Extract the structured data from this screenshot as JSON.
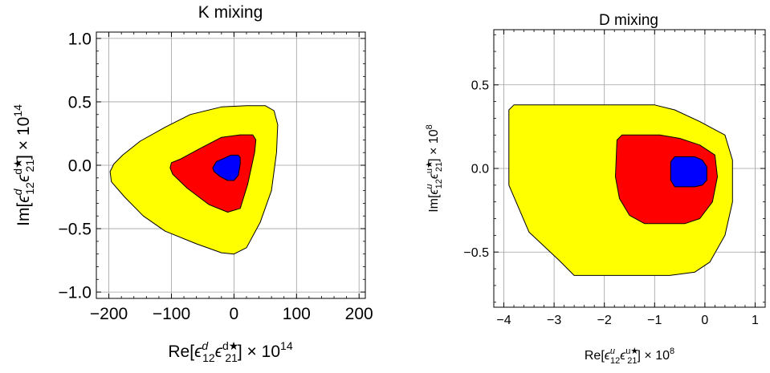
{
  "chart_data": [
    {
      "type": "contour",
      "title": "K mixing",
      "xlabel": {
        "pre": "Re[",
        "e1": "ϵ",
        "e1sup": "d",
        "e1sub": "12",
        "e2": "ϵ",
        "e2sup": "d★",
        "e2sub": "21",
        "post": "] × 10",
        "exp": "14"
      },
      "ylabel": {
        "pre": "Im[",
        "e1": "ϵ",
        "e1sup": "d",
        "e1sub": "12",
        "e2": "ϵ",
        "e2sup": "d★",
        "e2sub": "21",
        "post": "] × 10",
        "exp": "14"
      },
      "xlim": [
        -220,
        210
      ],
      "ylim": [
        -1.05,
        1.05
      ],
      "xticks": [
        -200,
        -100,
        0,
        100,
        200
      ],
      "xtick_labels": [
        "−200",
        "−100",
        "0",
        "100",
        "200"
      ],
      "yticks": [
        -1.0,
        -0.5,
        0.0,
        0.5,
        1.0
      ],
      "ytick_labels": [
        "−1.0",
        "−0.5",
        "0.0",
        "0.5",
        "1.0"
      ],
      "grid": true,
      "regions": [
        {
          "color": "#ffff00",
          "points": [
            [
              -198,
              -0.05
            ],
            [
              -196,
              -0.13
            ],
            [
              -175,
              -0.25
            ],
            [
              -145,
              -0.4
            ],
            [
              -110,
              -0.52
            ],
            [
              -60,
              -0.62
            ],
            [
              -20,
              -0.69
            ],
            [
              0,
              -0.7
            ],
            [
              20,
              -0.65
            ],
            [
              42,
              -0.45
            ],
            [
              60,
              -0.2
            ],
            [
              68,
              0.1
            ],
            [
              70,
              0.32
            ],
            [
              64,
              0.43
            ],
            [
              50,
              0.47
            ],
            [
              20,
              0.47
            ],
            [
              -20,
              0.46
            ],
            [
              -70,
              0.4
            ],
            [
              -110,
              0.3
            ],
            [
              -150,
              0.19
            ],
            [
              -178,
              0.08
            ],
            [
              -192,
              0.01
            ]
          ]
        },
        {
          "color": "#ff0000",
          "points": [
            [
              -102,
              -0.02
            ],
            [
              -98,
              -0.07
            ],
            [
              -75,
              -0.18
            ],
            [
              -40,
              -0.31
            ],
            [
              -10,
              -0.37
            ],
            [
              10,
              -0.34
            ],
            [
              22,
              -0.15
            ],
            [
              33,
              0.1
            ],
            [
              35,
              0.2
            ],
            [
              30,
              0.24
            ],
            [
              10,
              0.24
            ],
            [
              -20,
              0.22
            ],
            [
              -55,
              0.13
            ],
            [
              -85,
              0.05
            ],
            [
              -100,
              0.02
            ]
          ]
        },
        {
          "color": "#0000ff",
          "points": [
            [
              -34,
              -0.02
            ],
            [
              -32,
              -0.05
            ],
            [
              -22,
              -0.09
            ],
            [
              -10,
              -0.12
            ],
            [
              0,
              -0.12
            ],
            [
              7,
              -0.08
            ],
            [
              10,
              0.01
            ],
            [
              10,
              0.06
            ],
            [
              7,
              0.08
            ],
            [
              -5,
              0.08
            ],
            [
              -18,
              0.05
            ],
            [
              -28,
              0.03
            ]
          ]
        }
      ]
    },
    {
      "type": "contour",
      "title": "D mixing",
      "xlabel": {
        "pre": "Re[",
        "e1": "ϵ",
        "e1sup": "u",
        "e1sub": "12",
        "e2": "ϵ",
        "e2sup": "u★",
        "e2sub": "21",
        "post": "] × 10",
        "exp": "8"
      },
      "ylabel": {
        "pre": "Im[",
        "e1": "ϵ",
        "e1sup": "u",
        "e1sub": "12",
        "e2": "ϵ",
        "e2sup": "u★",
        "e2sub": "21",
        "post": "] × 10",
        "exp": "8"
      },
      "xlim": [
        -4.2,
        1.2
      ],
      "ylim": [
        -0.83,
        0.83
      ],
      "xticks": [
        -4,
        -3,
        -2,
        -1,
        0,
        1
      ],
      "xtick_labels": [
        "−4",
        "−3",
        "−2",
        "−1",
        "0",
        "1"
      ],
      "yticks": [
        -0.5,
        0.0,
        0.5
      ],
      "ytick_labels": [
        "−0.5",
        "0.0",
        "0.5"
      ],
      "grid": true,
      "regions": [
        {
          "color": "#ffff00",
          "points": [
            [
              -3.9,
              0.35
            ],
            [
              -3.8,
              0.38
            ],
            [
              -1.0,
              0.38
            ],
            [
              -0.6,
              0.35
            ],
            [
              -0.1,
              0.28
            ],
            [
              0.4,
              0.2
            ],
            [
              0.55,
              0.05
            ],
            [
              0.55,
              -0.2
            ],
            [
              0.4,
              -0.4
            ],
            [
              0.1,
              -0.56
            ],
            [
              -0.2,
              -0.62
            ],
            [
              -0.7,
              -0.64
            ],
            [
              -2.6,
              -0.64
            ],
            [
              -2.9,
              -0.55
            ],
            [
              -3.5,
              -0.38
            ],
            [
              -3.9,
              -0.1
            ]
          ]
        },
        {
          "color": "#ff0000",
          "points": [
            [
              -1.75,
              0.17
            ],
            [
              -1.65,
              0.2
            ],
            [
              -0.9,
              0.2
            ],
            [
              -0.5,
              0.18
            ],
            [
              -0.1,
              0.14
            ],
            [
              0.2,
              0.08
            ],
            [
              0.25,
              -0.05
            ],
            [
              0.15,
              -0.2
            ],
            [
              -0.1,
              -0.3
            ],
            [
              -0.4,
              -0.33
            ],
            [
              -1.2,
              -0.33
            ],
            [
              -1.5,
              -0.28
            ],
            [
              -1.7,
              -0.18
            ],
            [
              -1.78,
              -0.05
            ]
          ]
        },
        {
          "color": "#0000ff",
          "points": [
            [
              -0.68,
              0.04
            ],
            [
              -0.6,
              0.07
            ],
            [
              -0.2,
              0.07
            ],
            [
              -0.05,
              0.05
            ],
            [
              0.04,
              0.01
            ],
            [
              0.04,
              -0.07
            ],
            [
              -0.05,
              -0.1
            ],
            [
              -0.2,
              -0.11
            ],
            [
              -0.6,
              -0.11
            ],
            [
              -0.68,
              -0.07
            ]
          ]
        }
      ]
    }
  ]
}
